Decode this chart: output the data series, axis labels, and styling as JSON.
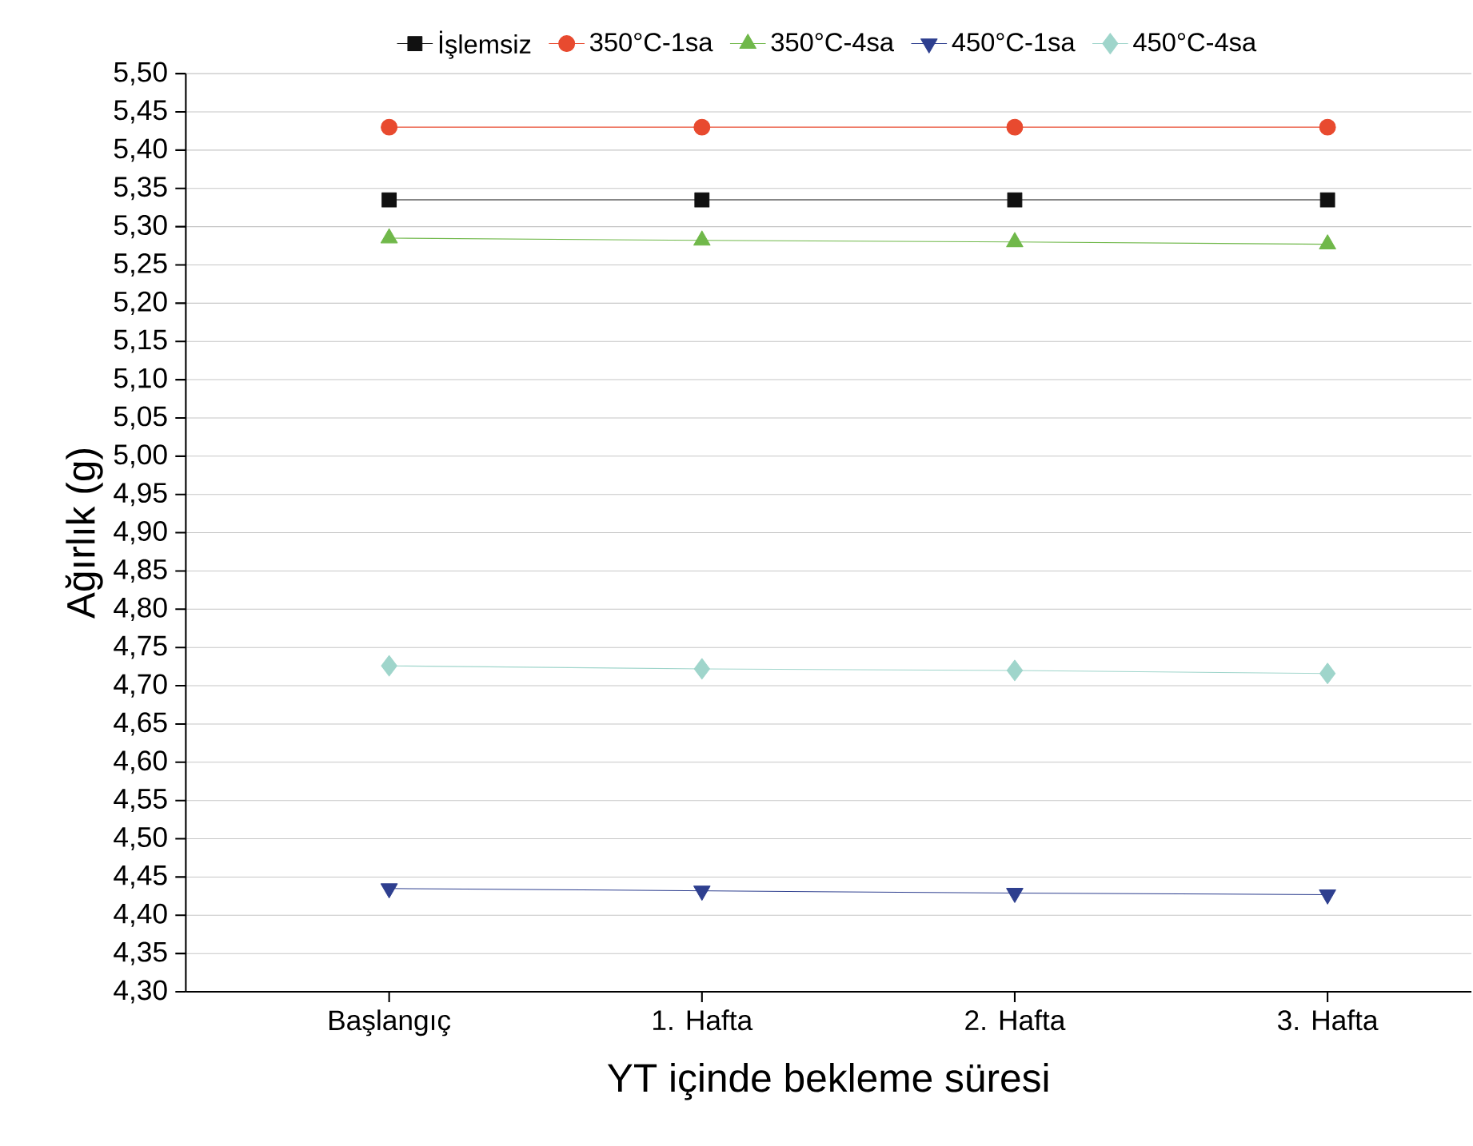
{
  "chart_data": {
    "type": "line",
    "xlabel": "YT içinde bekleme süresi",
    "ylabel": "Ağırlık (g)",
    "categories": [
      "Başlangıç",
      "1. Hafta",
      "2. Hafta",
      "3. Hafta"
    ],
    "series": [
      {
        "name": "İşlemsiz",
        "color": "#111111",
        "marker": "square",
        "values": [
          5.335,
          5.335,
          5.335,
          5.335
        ]
      },
      {
        "name": "350°C-1sa",
        "color": "#e84a2f",
        "marker": "circle",
        "values": [
          5.43,
          5.43,
          5.43,
          5.43
        ]
      },
      {
        "name": "350°C-4sa",
        "color": "#70b84a",
        "marker": "triangle",
        "values": [
          5.285,
          5.282,
          5.28,
          5.277
        ]
      },
      {
        "name": "450°C-1sa",
        "color": "#2e3f8f",
        "marker": "triangle_down",
        "values": [
          4.435,
          4.432,
          4.429,
          4.427
        ]
      },
      {
        "name": "450°C-4sa",
        "color": "#9fd5cb",
        "marker": "diamond",
        "values": [
          4.726,
          4.722,
          4.72,
          4.716
        ]
      }
    ],
    "ylim": [
      4.3,
      5.5
    ],
    "yticks": [
      {
        "value": 4.3,
        "label": "4,30"
      },
      {
        "value": 4.35,
        "label": "4,35"
      },
      {
        "value": 4.4,
        "label": "4,40"
      },
      {
        "value": 4.45,
        "label": "4,45"
      },
      {
        "value": 4.5,
        "label": "4,50"
      },
      {
        "value": 4.55,
        "label": "4,55"
      },
      {
        "value": 4.6,
        "label": "4,60"
      },
      {
        "value": 4.65,
        "label": "4,65"
      },
      {
        "value": 4.7,
        "label": "4,70"
      },
      {
        "value": 4.75,
        "label": "4,75"
      },
      {
        "value": 4.8,
        "label": "4,80"
      },
      {
        "value": 4.85,
        "label": "4,85"
      },
      {
        "value": 4.9,
        "label": "4,90"
      },
      {
        "value": 4.95,
        "label": "4,95"
      },
      {
        "value": 5.0,
        "label": "5,00"
      },
      {
        "value": 5.05,
        "label": "5,05"
      },
      {
        "value": 5.1,
        "label": "5,10"
      },
      {
        "value": 5.15,
        "label": "5,15"
      },
      {
        "value": 5.2,
        "label": "5,20"
      },
      {
        "value": 5.25,
        "label": "5,25"
      },
      {
        "value": 5.3,
        "label": "5,30"
      },
      {
        "value": 5.35,
        "label": "5,35"
      },
      {
        "value": 5.4,
        "label": "5,40"
      },
      {
        "value": 5.45,
        "label": "5,45"
      },
      {
        "value": 5.5,
        "label": "5,50"
      }
    ],
    "grid": "y",
    "legend": "top",
    "line_style": "solid"
  }
}
